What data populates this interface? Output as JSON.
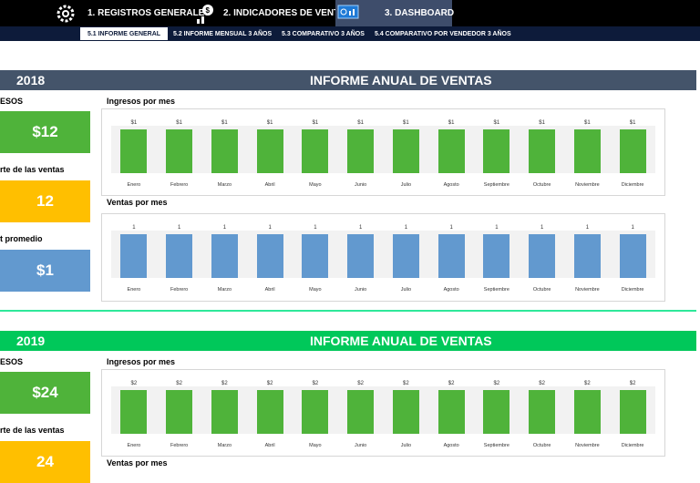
{
  "colors": {
    "topbar": "#000000",
    "subbar": "#0d1b3a",
    "header_2018": "#44546a",
    "header_2019": "#00c85a",
    "green_bar": "#4fb33a",
    "blue_bar": "#6299cf",
    "kpi_green": "#4fb33a",
    "kpi_yellow": "#ffbf00",
    "kpi_blue": "#6299cf",
    "separator": "#2ee89a"
  },
  "menu": {
    "items": [
      {
        "label": "1. REGISTROS GENERALES",
        "icon": "gear-icon"
      },
      {
        "label": "2. INDICADORES DE VENTAS",
        "icon": "money-chart-icon"
      },
      {
        "label": "3. DASHBOARD",
        "icon": "dashboard-icon"
      }
    ]
  },
  "subtabs": [
    {
      "label": "5.1 INFORME GENERAL",
      "active": true
    },
    {
      "label": "5.2 INFORME MENSUAL 3 AÑOS"
    },
    {
      "label": "5.3 COMPARATIVO 3 AÑOS"
    },
    {
      "label": "5.4 COMPARATIVO POR VENDEDOR 3 AÑOS"
    }
  ],
  "sections": [
    {
      "year": "2018",
      "title": "INFORME ANUAL DE VENTAS",
      "kpis": [
        {
          "label": "ESOS",
          "value": "$12"
        },
        {
          "label": "rte de las ventas",
          "value": "12"
        },
        {
          "label": "t promedio",
          "value": "$1"
        }
      ],
      "ingresos_title": "Ingresos por mes",
      "ventas_title": "Ventas por mes"
    },
    {
      "year": "2019",
      "title": "INFORME ANUAL DE VENTAS",
      "kpis": [
        {
          "label": "ESOS",
          "value": "$24"
        },
        {
          "label": "rte de las ventas",
          "value": "24"
        }
      ],
      "ingresos_title": "Ingresos por mes",
      "ventas_title": "Ventas por mes"
    }
  ],
  "chart_data": [
    {
      "type": "bar",
      "title": "Ingresos por mes",
      "categories": [
        "Enero",
        "Febrero",
        "Marzo",
        "Abril",
        "Mayo",
        "Junio",
        "Julio",
        "Agosto",
        "Septiembre",
        "Octubre",
        "Noviembre",
        "Diciembre"
      ],
      "values": [
        1,
        1,
        1,
        1,
        1,
        1,
        1,
        1,
        1,
        1,
        1,
        1
      ],
      "data_labels": [
        "$1",
        "$1",
        "$1",
        "$1",
        "$1",
        "$1",
        "$1",
        "$1",
        "$1",
        "$1",
        "$1",
        "$1"
      ]
    },
    {
      "type": "bar",
      "title": "Ventas por mes",
      "categories": [
        "Enero",
        "Febrero",
        "Marzo",
        "Abril",
        "Mayo",
        "Junio",
        "Julio",
        "Agosto",
        "Septiembre",
        "Octubre",
        "Noviembre",
        "Diciembre"
      ],
      "values": [
        1,
        1,
        1,
        1,
        1,
        1,
        1,
        1,
        1,
        1,
        1,
        1
      ],
      "data_labels": [
        "1",
        "1",
        "1",
        "1",
        "1",
        "1",
        "1",
        "1",
        "1",
        "1",
        "1",
        "1"
      ]
    },
    {
      "type": "bar",
      "title": "Ingresos por mes",
      "categories": [
        "Enero",
        "Febrero",
        "Marzo",
        "Abril",
        "Mayo",
        "Junio",
        "Julio",
        "Agosto",
        "Septiembre",
        "Octubre",
        "Noviembre",
        "Diciembre"
      ],
      "values": [
        2,
        2,
        2,
        2,
        2,
        2,
        2,
        2,
        2,
        2,
        2,
        2
      ],
      "data_labels": [
        "$2",
        "$2",
        "$2",
        "$2",
        "$2",
        "$2",
        "$2",
        "$2",
        "$2",
        "$2",
        "$2",
        "$2"
      ]
    }
  ]
}
